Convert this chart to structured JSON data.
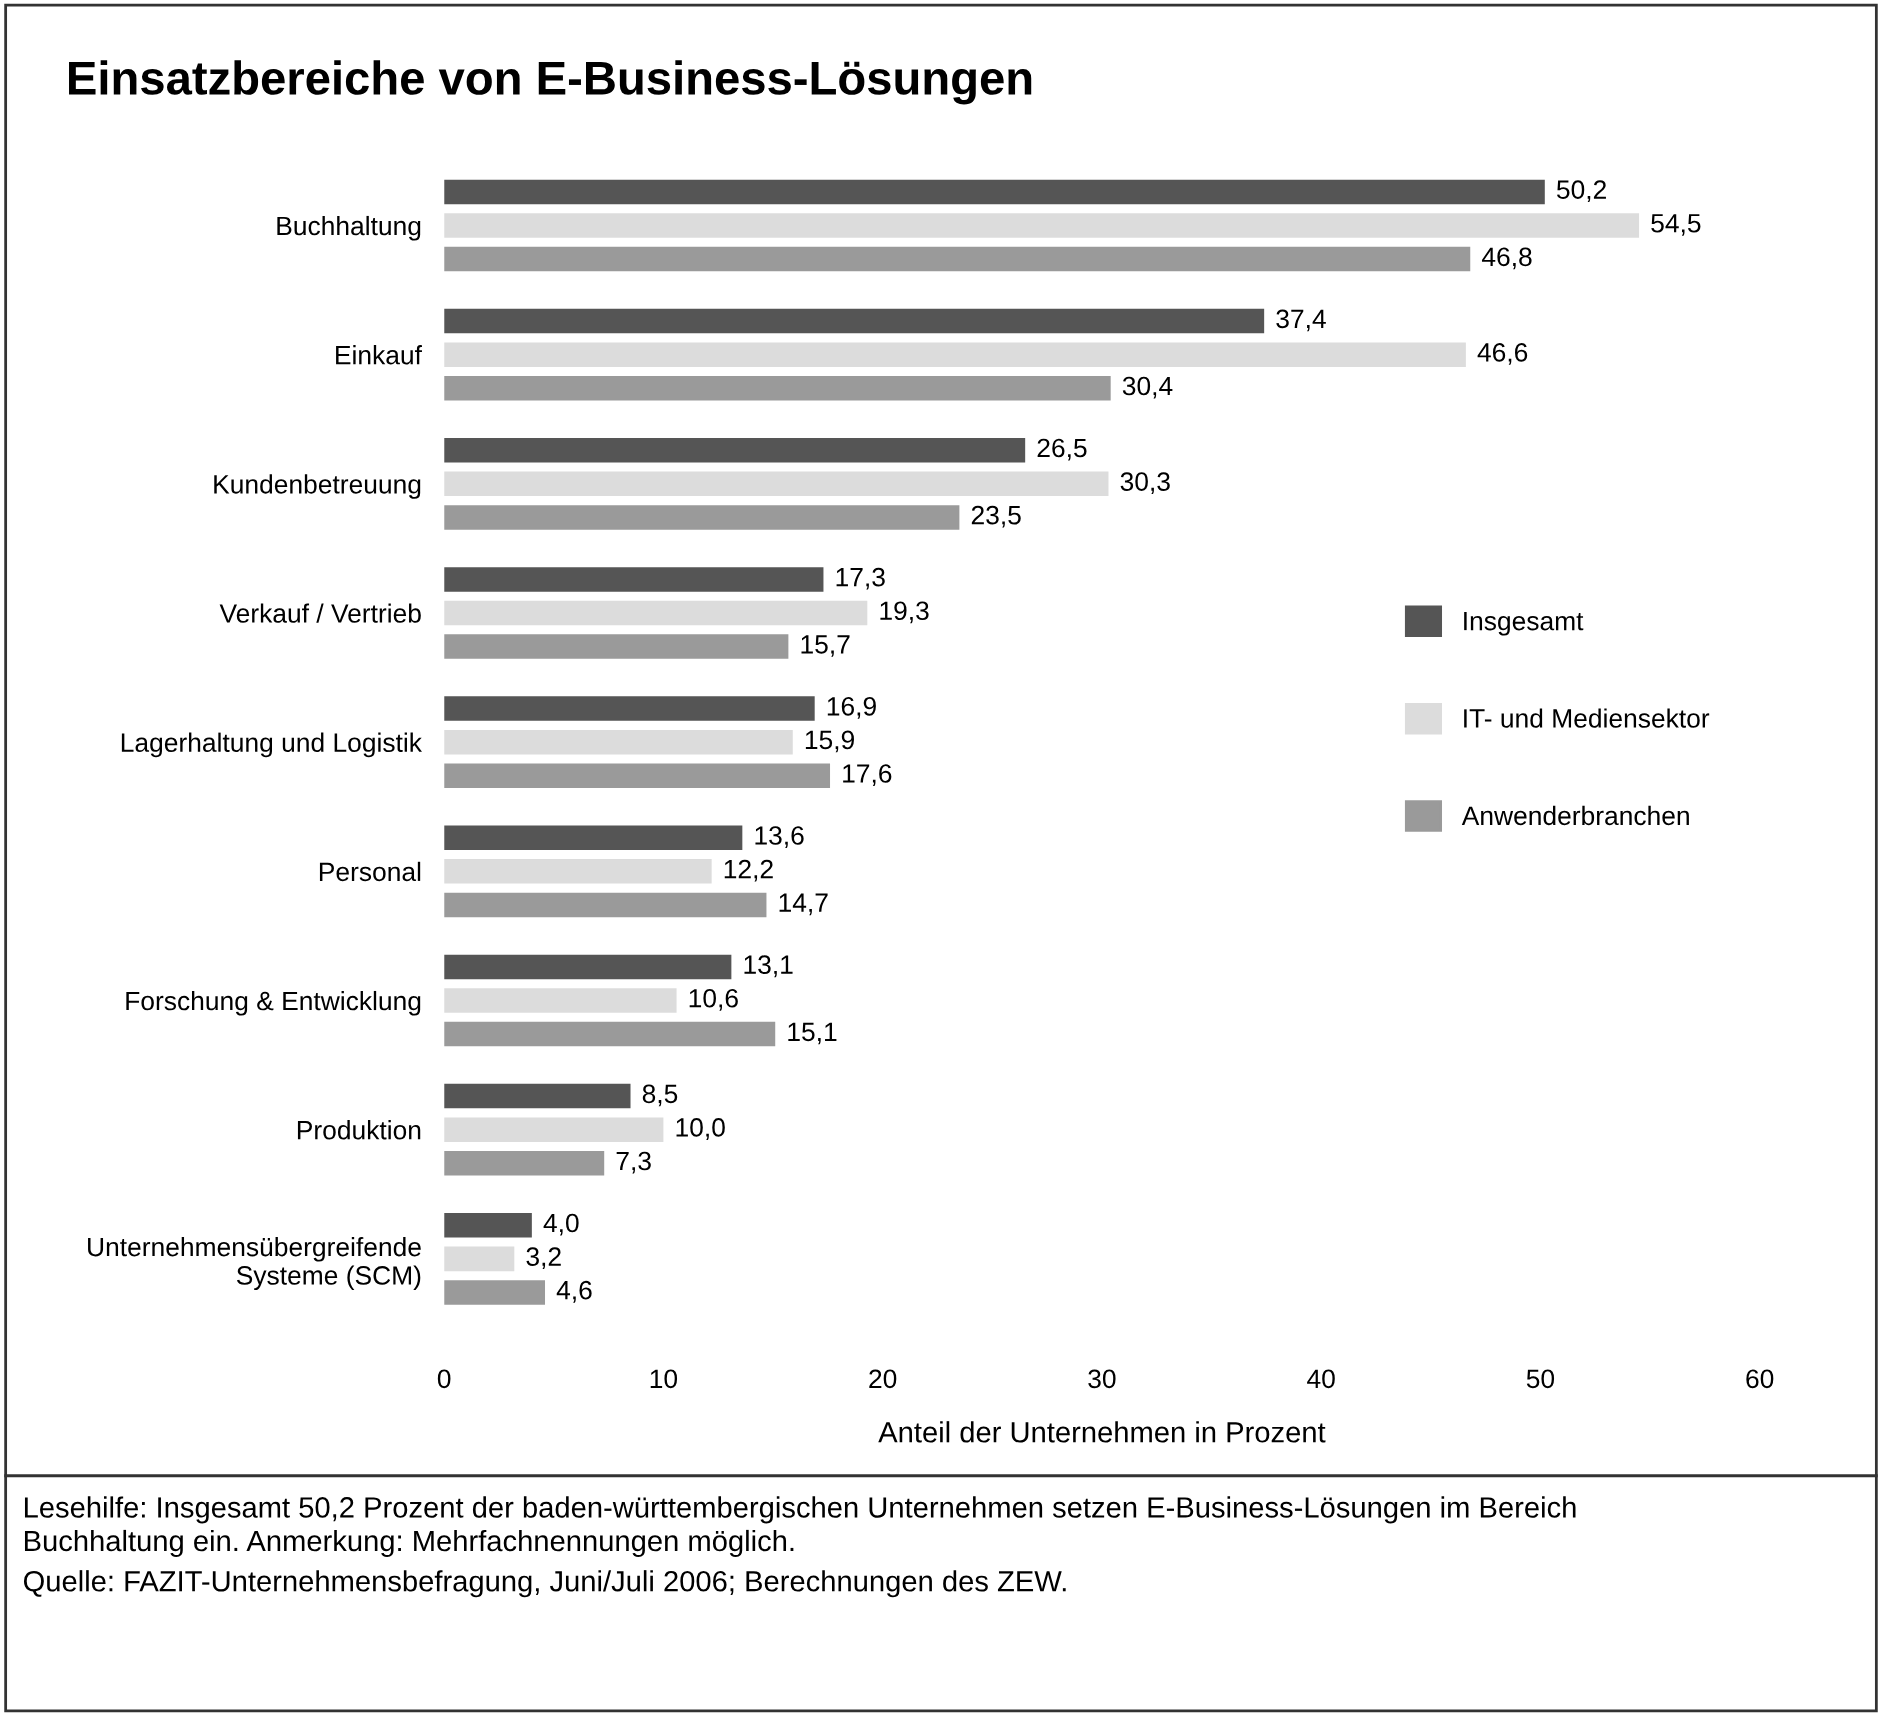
{
  "chart_data": {
    "type": "bar",
    "orientation": "horizontal",
    "title": "Einsatzbereiche von E-Business-Lösungen",
    "xlabel": "Anteil der Unternehmen in Prozent",
    "categories": [
      "Buchhaltung",
      "Einkauf",
      "Kundenbetreuung",
      "Verkauf / Vertrieb",
      "Lagerhaltung und Logistik",
      "Personal",
      "Forschung & Entwicklung",
      "Produktion",
      "Unternehmensübergreifende\nSysteme (SCM)"
    ],
    "series": [
      {
        "name": "Insgesamt",
        "color": "#555555",
        "values": [
          50.2,
          37.4,
          26.5,
          17.3,
          16.9,
          13.6,
          13.1,
          8.5,
          4.0
        ],
        "value_labels": [
          "50,2",
          "37,4",
          "26,5",
          "17,3",
          "16,9",
          "13,6",
          "13,1",
          "8,5",
          "4,0"
        ]
      },
      {
        "name": "IT- und Mediensektor",
        "color": "#dcdcdc",
        "values": [
          54.5,
          46.6,
          30.3,
          19.3,
          15.9,
          12.2,
          10.6,
          10.0,
          3.2
        ],
        "value_labels": [
          "54,5",
          "46,6",
          "30,3",
          "19,3",
          "15,9",
          "12,2",
          "10,6",
          "10,0",
          "3,2"
        ]
      },
      {
        "name": "Anwenderbranchen",
        "color": "#9a9a9a",
        "values": [
          46.8,
          30.4,
          23.5,
          15.7,
          17.6,
          14.7,
          15.1,
          7.3,
          4.6
        ],
        "value_labels": [
          "46,8",
          "30,4",
          "23,5",
          "15,7",
          "17,6",
          "14,7",
          "15,1",
          "7,3",
          "4,6"
        ]
      }
    ],
    "xlim": [
      0,
      60
    ],
    "xticks": [
      0,
      10,
      20,
      30,
      40,
      50,
      60
    ],
    "grid": false,
    "legend": "right",
    "annotations": [
      "Lesehilfe: Insgesamt 50,2 Prozent der baden-württembergischen Unternehmen setzen E-Business-Lösungen im Bereich\nBuchhaltung ein. Anmerkung: Mehrfachnennungen möglich.",
      "Quelle: FAZIT-Unternehmensbefragung, Juni/Juli 2006; Berechnungen des ZEW."
    ]
  }
}
